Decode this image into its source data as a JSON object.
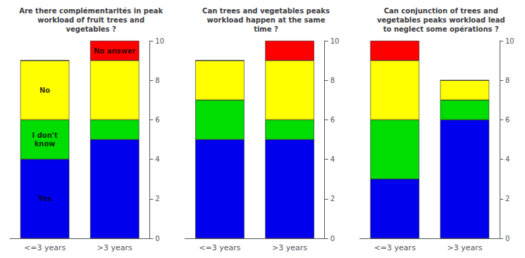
{
  "chart_data": [
    {
      "type": "bar",
      "stacked": true,
      "grid": false,
      "title": "Are there complémentarités in peak\nworkload of fruit trees and\nvegetables ?",
      "categories": [
        "<=3 years",
        ">3 years"
      ],
      "series": [
        {
          "color": "#0000EE",
          "values": [
            4,
            5
          ]
        },
        {
          "color": "#00DD00",
          "values": [
            2,
            1
          ]
        },
        {
          "color": "#FFFF00",
          "values": [
            3,
            3
          ]
        },
        {
          "color": "#FF0000",
          "values": [
            0,
            1
          ]
        }
      ],
      "ylim": [
        0,
        10
      ],
      "yticks": [
        0,
        2,
        4,
        6,
        8,
        10
      ],
      "annotations": [
        {
          "text": "Yes",
          "x": "<=3 years",
          "y": 2.0
        },
        {
          "text": "I don't\nknow",
          "x": "<=3 years",
          "y": 5.0
        },
        {
          "text": "No",
          "x": "<=3 years",
          "y": 7.5
        },
        {
          "text": "No answer",
          "x": ">3 years",
          "y": 9.5
        }
      ]
    },
    {
      "type": "bar",
      "stacked": true,
      "grid": false,
      "title": "Can trees and vegetables peaks\nworkload happen at the same\ntime ?",
      "categories": [
        "<=3 years",
        ">3 years"
      ],
      "series": [
        {
          "color": "#0000EE",
          "values": [
            5,
            5
          ]
        },
        {
          "color": "#00DD00",
          "values": [
            2,
            1
          ]
        },
        {
          "color": "#FFFF00",
          "values": [
            2,
            3
          ]
        },
        {
          "color": "#FF0000",
          "values": [
            0,
            1
          ]
        }
      ],
      "ylim": [
        0,
        10
      ],
      "yticks": [
        0,
        2,
        4,
        6,
        8,
        10
      ]
    },
    {
      "type": "bar",
      "stacked": true,
      "grid": false,
      "title": "Can conjunction of trees and\nvegetables peaks workload lead\nto neglect some opérations ?",
      "categories": [
        "<=3 years",
        ">3 years"
      ],
      "series": [
        {
          "color": "#0000EE",
          "values": [
            3,
            6
          ]
        },
        {
          "color": "#00DD00",
          "values": [
            3,
            1
          ]
        },
        {
          "color": "#FFFF00",
          "values": [
            3,
            1
          ]
        },
        {
          "color": "#FF0000",
          "values": [
            1,
            0
          ]
        }
      ],
      "ylim": [
        0,
        10
      ],
      "yticks": [
        0,
        2,
        4,
        6,
        8,
        10
      ]
    }
  ]
}
